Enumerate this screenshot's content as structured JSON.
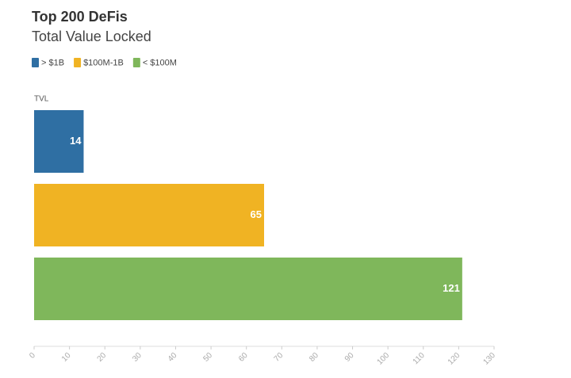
{
  "chart_data": {
    "type": "bar",
    "orientation": "horizontal",
    "title": "Top 200 DeFis",
    "subtitle": "Total Value Locked",
    "categories": [
      "TVL"
    ],
    "series": [
      {
        "name": "> $1B",
        "color": "#2f6fa3",
        "values": [
          14
        ]
      },
      {
        "name": "$100M-1B",
        "color": "#f0b323",
        "values": [
          65
        ]
      },
      {
        "name": "< $100M",
        "color": "#7fb75b",
        "values": [
          121
        ]
      }
    ],
    "xlim": [
      0,
      130
    ],
    "xticks": [
      0,
      10,
      20,
      30,
      40,
      50,
      60,
      70,
      80,
      90,
      100,
      110,
      120,
      130
    ],
    "legend": "top-left"
  }
}
